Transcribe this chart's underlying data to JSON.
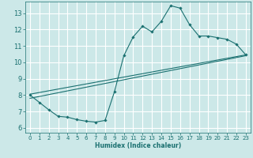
{
  "xlabel": "Humidex (Indice chaleur)",
  "bg_color": "#cce8e8",
  "grid_color": "#ffffff",
  "line_color": "#1a7070",
  "xlim": [
    -0.5,
    23.5
  ],
  "ylim": [
    5.7,
    13.7
  ],
  "yticks": [
    6,
    7,
    8,
    9,
    10,
    11,
    12,
    13
  ],
  "xticks": [
    0,
    1,
    2,
    3,
    4,
    5,
    6,
    7,
    8,
    9,
    10,
    11,
    12,
    13,
    14,
    15,
    16,
    17,
    18,
    19,
    20,
    21,
    22,
    23
  ],
  "curve1_x": [
    0,
    1,
    2,
    3,
    4,
    5,
    6,
    7,
    8,
    9,
    10,
    11,
    12,
    13,
    14,
    15,
    16,
    17,
    18,
    19,
    20,
    21,
    22,
    23
  ],
  "curve1_y": [
    8.0,
    7.55,
    7.1,
    6.7,
    6.65,
    6.5,
    6.4,
    6.35,
    6.45,
    8.2,
    10.4,
    11.55,
    12.2,
    11.85,
    12.5,
    13.45,
    13.3,
    12.3,
    11.6,
    11.6,
    11.5,
    11.4,
    11.1,
    10.45
  ],
  "line1_x": [
    0,
    23
  ],
  "line1_y": [
    7.8,
    10.4
  ],
  "line2_x": [
    0,
    23
  ],
  "line2_y": [
    8.05,
    10.45
  ]
}
